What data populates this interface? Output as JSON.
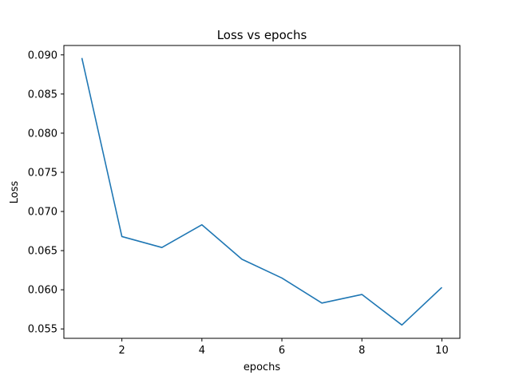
{
  "chart_data": {
    "type": "line",
    "title": "Loss vs epochs",
    "xlabel": "epochs",
    "ylabel": "Loss",
    "xlim": [
      0.55,
      10.45
    ],
    "ylim": [
      0.0538,
      0.0912
    ],
    "xticks": [
      2,
      4,
      6,
      8,
      10
    ],
    "xtick_labels": [
      "2",
      "4",
      "6",
      "8",
      "10"
    ],
    "yticks": [
      0.055,
      0.06,
      0.065,
      0.07,
      0.075,
      0.08,
      0.085,
      0.09
    ],
    "ytick_labels": [
      "0.055",
      "0.060",
      "0.065",
      "0.070",
      "0.075",
      "0.080",
      "0.085",
      "0.090"
    ],
    "grid": false,
    "series": [
      {
        "color": "#1f77b4",
        "x": [
          1,
          2,
          3,
          4,
          5,
          6,
          7,
          8,
          9,
          10
        ],
        "y": [
          0.0896,
          0.0668,
          0.0654,
          0.0683,
          0.0639,
          0.0615,
          0.0583,
          0.0594,
          0.0555,
          0.0603
        ]
      }
    ]
  }
}
